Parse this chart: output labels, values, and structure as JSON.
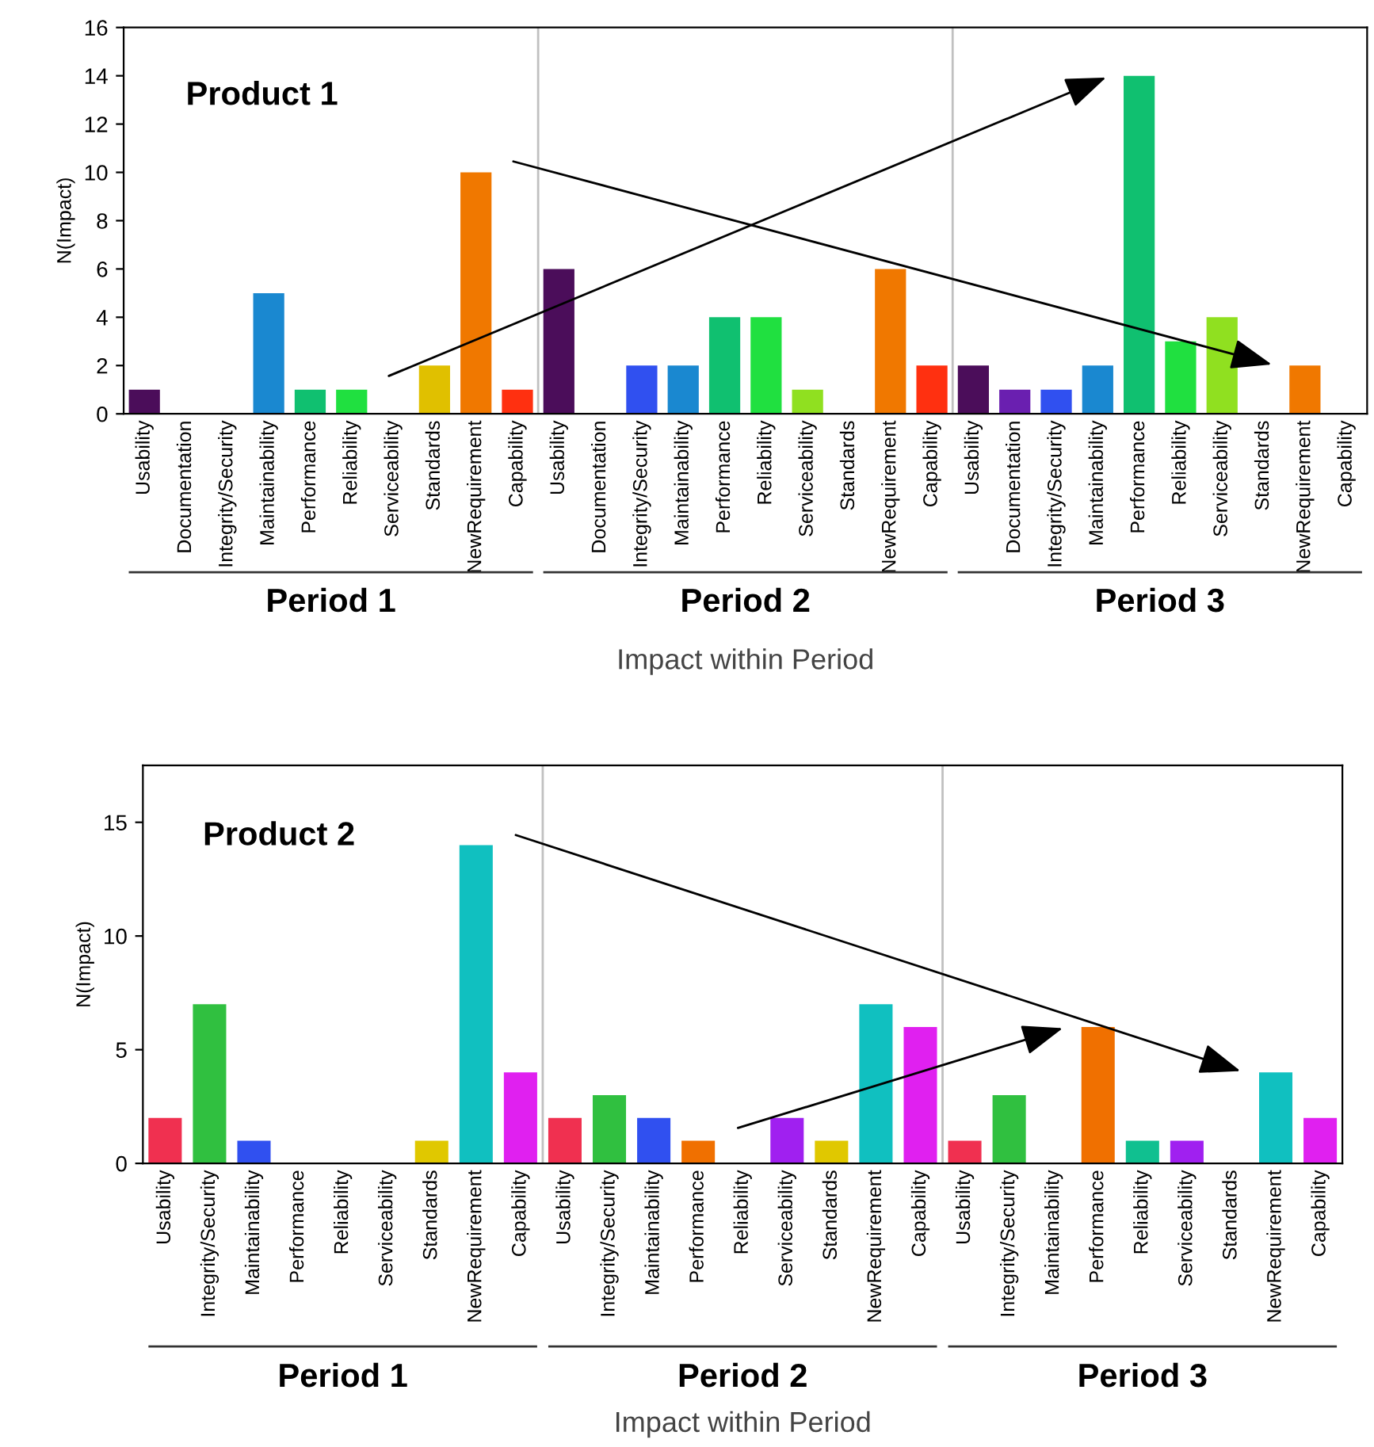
{
  "chart_data": [
    {
      "type": "bar",
      "xlabel": "Impact within Period",
      "ylabel": "N(Impact)",
      "categories": [
        "Usability",
        "Documentation",
        "Integrity/Security",
        "Maintainability",
        "Performance",
        "Reliability",
        "Serviceability",
        "Standards",
        "NewRequirement",
        "Capability",
        "Usability",
        "Documentation",
        "Integrity/Security",
        "Maintainability",
        "Performance",
        "Reliability",
        "Serviceability",
        "Standards",
        "NewRequirement",
        "Capability",
        "Usability",
        "Documentation",
        "Integrity/Security",
        "Maintainability",
        "Performance",
        "Reliability",
        "Serviceability",
        "Standards",
        "NewRequirement",
        "Capability"
      ],
      "values": [
        1,
        0,
        0,
        5,
        1,
        1,
        0,
        2,
        10,
        1,
        6,
        0,
        2,
        2,
        4,
        4,
        1,
        0,
        6,
        2,
        2,
        1,
        1,
        2,
        14,
        3,
        4,
        0,
        2,
        0
      ],
      "colors": [
        "#4b0d5a",
        "#6a1fb0",
        "#3050f0",
        "#1a88d0",
        "#10c070",
        "#20e040",
        "#90e020",
        "#e0c000",
        "#f07800",
        "#ff3010",
        "#4b0d5a",
        "#6a1fb0",
        "#3050f0",
        "#1a88d0",
        "#10c070",
        "#20e040",
        "#90e020",
        "#e0c000",
        "#f07800",
        "#ff3010",
        "#4b0d5a",
        "#6a1fb0",
        "#3050f0",
        "#1a88d0",
        "#10c070",
        "#20e040",
        "#90e020",
        "#e0c000",
        "#f07800",
        "#ff3010"
      ],
      "ylim": [
        0,
        16
      ],
      "yticks": [
        0,
        2,
        4,
        6,
        8,
        10,
        12,
        14,
        16
      ],
      "grid": false,
      "annotations": [
        "Product 1",
        "Period 1",
        "Period 2",
        "Period 3"
      ]
    },
    {
      "type": "bar",
      "xlabel": "Impact within Period",
      "ylabel": "N(Impact)",
      "categories": [
        "Usability",
        "Integrity/Security",
        "Maintainability",
        "Performance",
        "Reliability",
        "Serviceability",
        "Standards",
        "NewRequirement",
        "Capability",
        "Usability",
        "Integrity/Security",
        "Maintainability",
        "Performance",
        "Reliability",
        "Serviceability",
        "Standards",
        "NewRequirement",
        "Capability",
        "Usability",
        "Integrity/Security",
        "Maintainability",
        "Performance",
        "Reliability",
        "Serviceability",
        "Standards",
        "NewRequirement",
        "Capability"
      ],
      "values": [
        2,
        7,
        1,
        0,
        0,
        0,
        1,
        14,
        4,
        2,
        3,
        2,
        1,
        0,
        2,
        1,
        7,
        6,
        1,
        3,
        0,
        6,
        1,
        1,
        0,
        4,
        2
      ],
      "colors": [
        "#f03050",
        "#30c040",
        "#3050f0",
        "#f07000",
        "#10c090",
        "#a020f0",
        "#e0c800",
        "#10c0c0",
        "#e020f0",
        "#f03050",
        "#30c040",
        "#3050f0",
        "#f07000",
        "#10c090",
        "#a020f0",
        "#e0c800",
        "#10c0c0",
        "#e020f0",
        "#f03050",
        "#30c040",
        "#3050f0",
        "#f07000",
        "#10c090",
        "#a020f0",
        "#e0c800",
        "#10c0c0",
        "#e020f0"
      ],
      "ylim": [
        0,
        17.5
      ],
      "yticks": [
        0,
        5,
        10,
        15
      ],
      "grid": false,
      "annotations": [
        "Product 2",
        "Period 1",
        "Period 2",
        "Period 3"
      ]
    }
  ]
}
